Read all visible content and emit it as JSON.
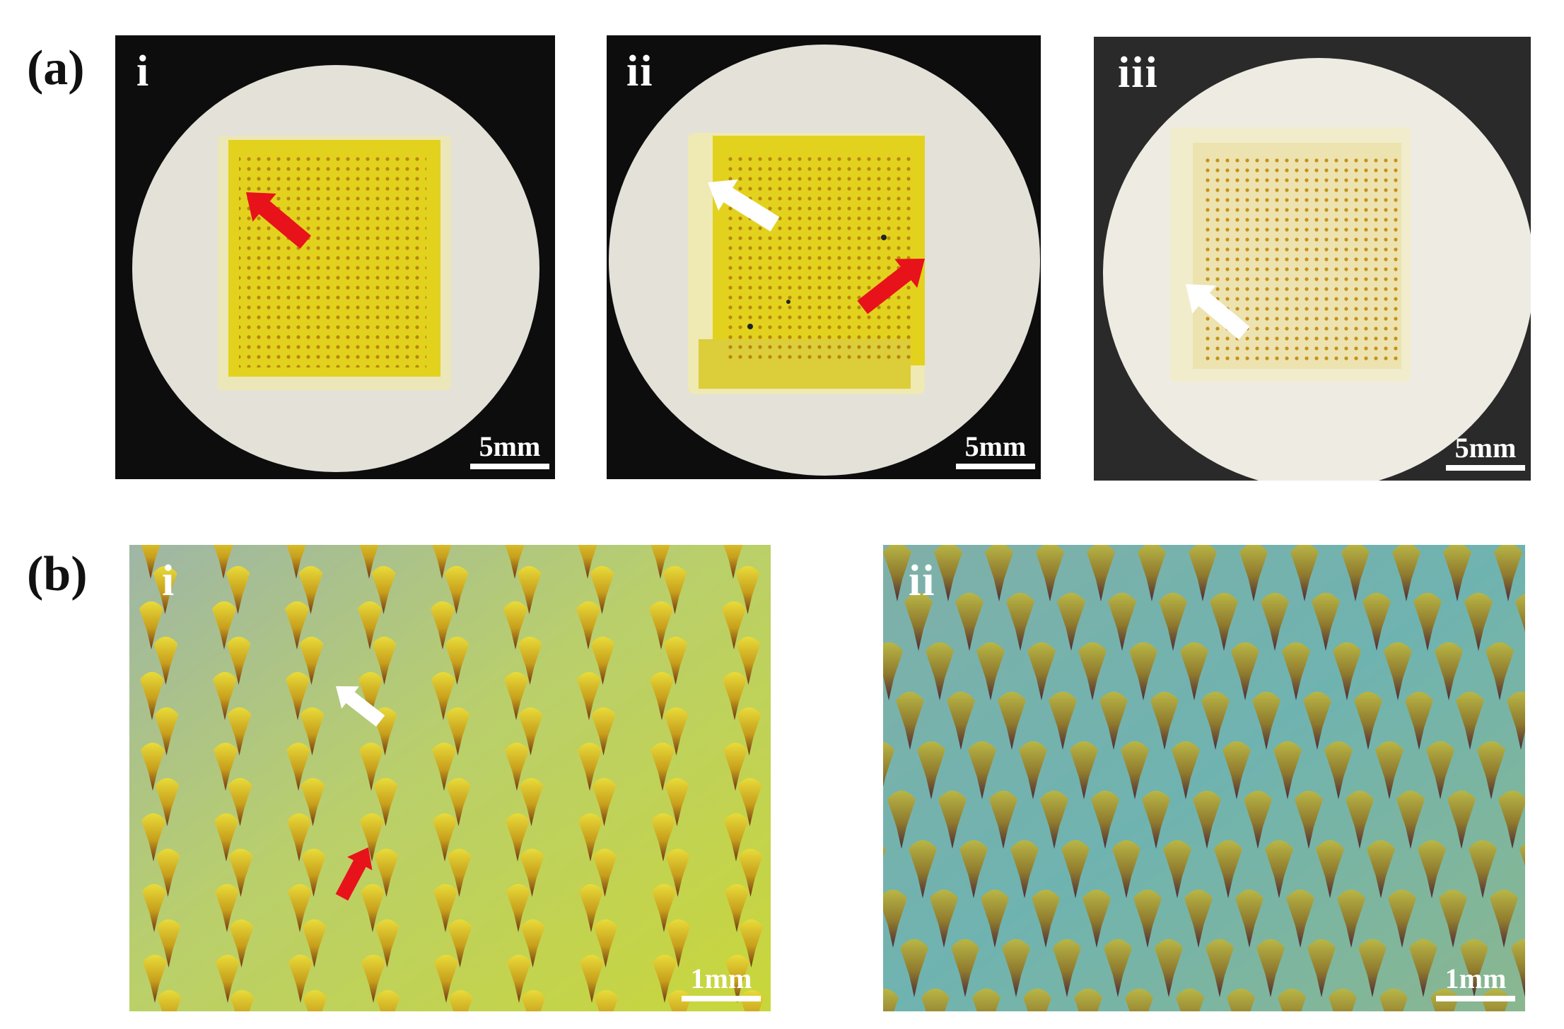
{
  "figure": {
    "rows": [
      {
        "label": "(a)",
        "panels": [
          {
            "sub_label": "i",
            "scale_bar": "5mm",
            "arrows": [
              "red-arrow"
            ]
          },
          {
            "sub_label": "ii",
            "scale_bar": "5mm",
            "arrows": [
              "white-arrow",
              "red-arrow"
            ]
          },
          {
            "sub_label": "iii",
            "scale_bar": "5mm",
            "arrows": [
              "white-arrow"
            ]
          }
        ]
      },
      {
        "label": "(b)",
        "panels": [
          {
            "sub_label": "i",
            "scale_bar": "1mm",
            "arrows": [
              "white-arrow",
              "red-arrow"
            ]
          },
          {
            "sub_label": "ii",
            "scale_bar": "1mm",
            "arrows": []
          }
        ]
      }
    ],
    "colors": {
      "red_arrow": "#e8121b",
      "white_arrow": "#ffffff",
      "patch_yellow": "#e2d21e",
      "patch_pale": "#efe9b4",
      "disk": "#e3e1d8",
      "background_black": "#0d0d0d"
    }
  }
}
